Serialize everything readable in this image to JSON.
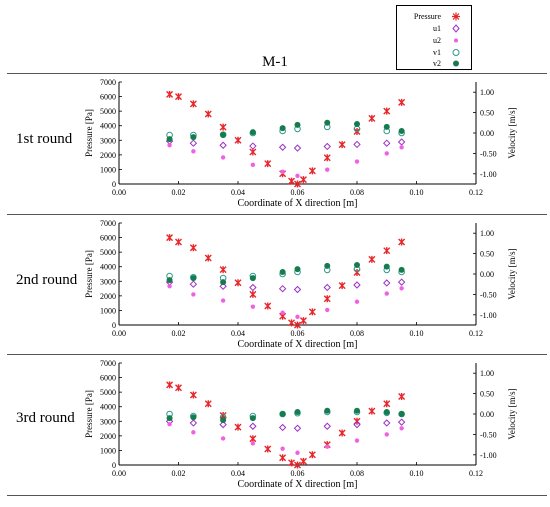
{
  "title": "M-1",
  "legend": [
    {
      "key": "pressure",
      "label": "Pressure",
      "marker": "x",
      "color": "#e8262a"
    },
    {
      "key": "u1",
      "label": "u1",
      "marker": "diamond-open",
      "color": "#9b30c8"
    },
    {
      "key": "u2",
      "label": "u2",
      "marker": "dot",
      "color": "#f060e6"
    },
    {
      "key": "v1",
      "label": "v1",
      "marker": "circle-open",
      "color": "#2a9a8c"
    },
    {
      "key": "v2",
      "label": "v2",
      "marker": "circle-filled",
      "color": "#167c4e"
    }
  ],
  "rounds": [
    {
      "label": "1st round"
    },
    {
      "label": "2nd round"
    },
    {
      "label": "3rd round"
    }
  ],
  "chart_data": [
    {
      "type": "scatter",
      "xlabel": "Coordinate of X direction [m]",
      "ylabel": "Pressure [Pa]",
      "y2label": "Velocity [m/s]",
      "xlim": [
        0,
        0.12
      ],
      "ylim": [
        0,
        7000
      ],
      "y2lim": [
        -1.25,
        1.25
      ],
      "xticks": [
        "0.00",
        "0.02",
        "0.04",
        "0.06",
        "0.08",
        "0.10",
        "0.12"
      ],
      "yticks": [
        "0",
        "1000",
        "2000",
        "3000",
        "4000",
        "5000",
        "6000",
        "7000"
      ],
      "y2ticks": [
        "1.00",
        "0.50",
        "0.00",
        "-0.50",
        "-1.00"
      ],
      "series": [
        {
          "name": "Pressure",
          "x": [
            0.017,
            0.02,
            0.025,
            0.03,
            0.035,
            0.04,
            0.045,
            0.05,
            0.055,
            0.058,
            0.06,
            0.062,
            0.065,
            0.07,
            0.075,
            0.08,
            0.085,
            0.09,
            0.095
          ],
          "y": [
            6150,
            6000,
            5500,
            4800,
            3900,
            3000,
            2200,
            1400,
            700,
            200,
            0,
            300,
            900,
            1800,
            2700,
            3600,
            4500,
            5000,
            5600
          ]
        },
        {
          "name": "u1",
          "x": [
            0.017,
            0.025,
            0.035,
            0.045,
            0.055,
            0.06,
            0.07,
            0.08,
            0.09,
            0.095
          ],
          "y": [
            -0.2,
            -0.25,
            -0.3,
            -0.32,
            -0.35,
            -0.37,
            -0.33,
            -0.28,
            -0.25,
            -0.22
          ]
        },
        {
          "name": "u2",
          "x": [
            0.017,
            0.025,
            0.035,
            0.045,
            0.055,
            0.06,
            0.07,
            0.08,
            0.09,
            0.095
          ],
          "y": [
            -0.3,
            -0.45,
            -0.6,
            -0.78,
            -0.95,
            -1.05,
            -0.9,
            -0.7,
            -0.5,
            -0.35
          ]
        },
        {
          "name": "v1",
          "x": [
            0.017,
            0.025,
            0.035,
            0.045,
            0.055,
            0.06,
            0.07,
            0.08,
            0.09,
            0.095
          ],
          "y": [
            -0.05,
            -0.05,
            -0.04,
            0.0,
            0.05,
            0.1,
            0.15,
            0.1,
            0.05,
            0.0
          ]
        },
        {
          "name": "v2",
          "x": [
            0.017,
            0.025,
            0.035,
            0.045,
            0.055,
            0.06,
            0.07,
            0.08,
            0.09,
            0.095
          ],
          "y": [
            -0.15,
            -0.1,
            -0.05,
            0.02,
            0.12,
            0.2,
            0.25,
            0.22,
            0.15,
            0.05
          ]
        }
      ]
    },
    {
      "type": "scatter",
      "xlabel": "Coordinate of X direction [m]",
      "ylabel": "Pressure [Pa]",
      "y2label": "Velocity [m/s]",
      "xlim": [
        0,
        0.12
      ],
      "ylim": [
        0,
        7000
      ],
      "y2lim": [
        -1.25,
        1.25
      ],
      "xticks": [
        "0.00",
        "0.02",
        "0.04",
        "0.06",
        "0.08",
        "0.10",
        "0.12"
      ],
      "yticks": [
        "0",
        "1000",
        "2000",
        "3000",
        "4000",
        "5000",
        "6000",
        "7000"
      ],
      "y2ticks": [
        "1.00",
        "0.50",
        "0.00",
        "-0.50",
        "-1.00"
      ],
      "series": [
        {
          "name": "Pressure",
          "x": [
            0.017,
            0.02,
            0.025,
            0.03,
            0.035,
            0.04,
            0.045,
            0.05,
            0.055,
            0.058,
            0.06,
            0.062,
            0.065,
            0.07,
            0.075,
            0.08,
            0.085,
            0.09,
            0.095
          ],
          "y": [
            6000,
            5700,
            5300,
            4600,
            3800,
            2900,
            2100,
            1300,
            600,
            150,
            0,
            300,
            900,
            1800,
            2700,
            3600,
            4500,
            5100,
            5700
          ]
        },
        {
          "name": "u1",
          "x": [
            0.017,
            0.025,
            0.035,
            0.045,
            0.055,
            0.06,
            0.07,
            0.08,
            0.09,
            0.095
          ],
          "y": [
            -0.2,
            -0.25,
            -0.3,
            -0.33,
            -0.36,
            -0.38,
            -0.33,
            -0.27,
            -0.22,
            -0.2
          ]
        },
        {
          "name": "u2",
          "x": [
            0.017,
            0.025,
            0.035,
            0.045,
            0.055,
            0.06,
            0.07,
            0.08,
            0.09,
            0.095
          ],
          "y": [
            -0.3,
            -0.5,
            -0.65,
            -0.8,
            -0.95,
            -1.05,
            -0.88,
            -0.68,
            -0.48,
            -0.35
          ]
        },
        {
          "name": "v1",
          "x": [
            0.017,
            0.025,
            0.035,
            0.045,
            0.055,
            0.06,
            0.07,
            0.08,
            0.09,
            0.095
          ],
          "y": [
            -0.05,
            -0.08,
            -0.1,
            -0.05,
            0.0,
            0.05,
            0.1,
            0.12,
            0.1,
            0.05
          ]
        },
        {
          "name": "v2",
          "x": [
            0.017,
            0.025,
            0.035,
            0.045,
            0.055,
            0.06,
            0.07,
            0.08,
            0.09,
            0.095
          ],
          "y": [
            -0.15,
            -0.1,
            -0.2,
            -0.1,
            0.05,
            0.12,
            0.2,
            0.22,
            0.18,
            0.1
          ]
        }
      ]
    },
    {
      "type": "scatter",
      "xlabel": "Coordinate of X direction [m]",
      "ylabel": "Pressure [Pa]",
      "y2label": "Velocity [m/s]",
      "xlim": [
        0,
        0.12
      ],
      "ylim": [
        0,
        7000
      ],
      "y2lim": [
        -1.25,
        1.25
      ],
      "xticks": [
        "0.00",
        "0.02",
        "0.04",
        "0.06",
        "0.08",
        "0.10",
        "0.12"
      ],
      "yticks": [
        "0",
        "1000",
        "2000",
        "3000",
        "4000",
        "5000",
        "6000",
        "7000"
      ],
      "y2ticks": [
        "1.00",
        "0.50",
        "0.00",
        "-0.50",
        "-1.00"
      ],
      "series": [
        {
          "name": "Pressure",
          "x": [
            0.017,
            0.02,
            0.025,
            0.03,
            0.035,
            0.04,
            0.045,
            0.05,
            0.055,
            0.058,
            0.06,
            0.062,
            0.065,
            0.07,
            0.075,
            0.08,
            0.085,
            0.09,
            0.095
          ],
          "y": [
            5500,
            5300,
            4800,
            4200,
            3400,
            2600,
            1800,
            1100,
            500,
            150,
            0,
            250,
            700,
            1400,
            2200,
            3000,
            3700,
            4200,
            4700
          ]
        },
        {
          "name": "u1",
          "x": [
            0.017,
            0.025,
            0.035,
            0.045,
            0.055,
            0.06,
            0.07,
            0.08,
            0.09,
            0.095
          ],
          "y": [
            -0.18,
            -0.22,
            -0.26,
            -0.3,
            -0.33,
            -0.35,
            -0.3,
            -0.26,
            -0.22,
            -0.2
          ]
        },
        {
          "name": "u2",
          "x": [
            0.017,
            0.025,
            0.035,
            0.045,
            0.055,
            0.06,
            0.07,
            0.08,
            0.09,
            0.095
          ],
          "y": [
            -0.25,
            -0.45,
            -0.6,
            -0.72,
            -0.85,
            -0.95,
            -0.8,
            -0.65,
            -0.5,
            -0.35
          ]
        },
        {
          "name": "v1",
          "x": [
            0.017,
            0.025,
            0.035,
            0.045,
            0.055,
            0.06,
            0.07,
            0.08,
            0.09,
            0.095
          ],
          "y": [
            0.0,
            -0.05,
            -0.08,
            -0.05,
            0.0,
            0.02,
            0.05,
            0.05,
            0.03,
            0.0
          ]
        },
        {
          "name": "v2",
          "x": [
            0.017,
            0.025,
            0.035,
            0.045,
            0.055,
            0.06,
            0.07,
            0.08,
            0.09,
            0.095
          ],
          "y": [
            -0.1,
            -0.08,
            -0.15,
            -0.1,
            0.0,
            0.05,
            0.08,
            0.08,
            0.05,
            0.0
          ]
        }
      ]
    }
  ]
}
